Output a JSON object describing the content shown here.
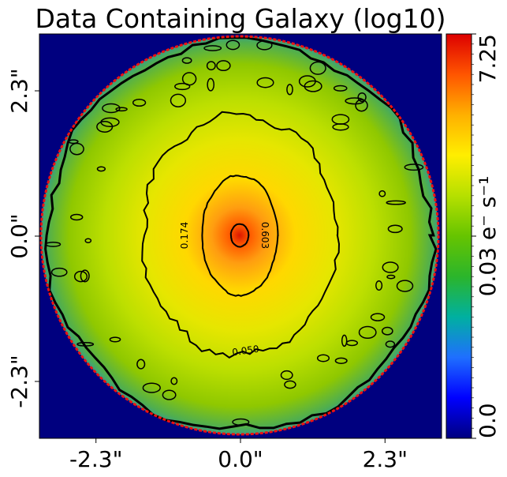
{
  "chart_data": {
    "type": "heatmap",
    "title": "Data Containing Galaxy (log10)",
    "xlabel": "",
    "ylabel": "",
    "x_ticks": [
      "-2.3\"",
      "0.0\"",
      "2.3\""
    ],
    "y_ticks": [
      "2.3\"",
      "0.0\"",
      "-2.3\""
    ],
    "xlim": [
      -3.2,
      3.2
    ],
    "ylim": [
      -3.2,
      3.2
    ],
    "colorbar": {
      "scale": "log",
      "range": [
        0.0,
        7.25
      ],
      "tick_labels": [
        "0.0",
        "0.03 e⁻ s⁻¹",
        "7.25"
      ],
      "colormap": [
        "#00007f",
        "#0000ff",
        "#007fff",
        "#00cc66",
        "#66cc00",
        "#ccee00",
        "#ffee00",
        "#ffaa00",
        "#ff5500",
        "#dd0000"
      ]
    },
    "contours": [
      {
        "level": "0.050",
        "rx": 3.2,
        "ry": 3.2,
        "label": "0.050"
      },
      {
        "level": "0.174",
        "rx": 1.55,
        "ry": 1.9,
        "label": "0.174"
      },
      {
        "level": "0.603",
        "rx": 0.6,
        "ry": 0.95,
        "label": "0.603"
      },
      {
        "level": "peak",
        "rx": 0.14,
        "ry": 0.18,
        "label": ""
      }
    ],
    "background_color": "#00007f",
    "edge_color": "#ee1111"
  }
}
